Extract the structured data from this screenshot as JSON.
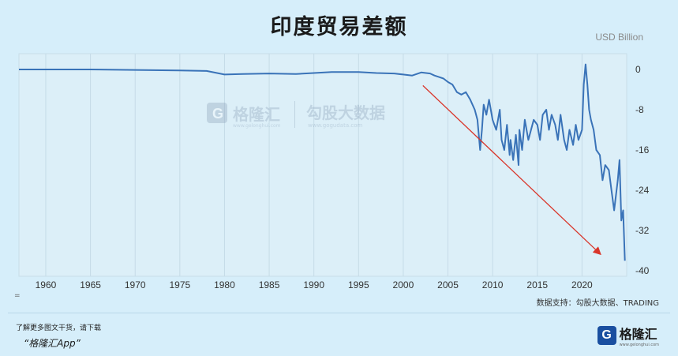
{
  "chart_data": {
    "type": "line",
    "title": "印度贸易差额",
    "ylabel": "USD Billion",
    "xlabel": "",
    "xlim": [
      1957,
      2025
    ],
    "ylim": [
      -40,
      1
    ],
    "xticks": [
      "1960",
      "1965",
      "1970",
      "1975",
      "1980",
      "1985",
      "1990",
      "1995",
      "2000",
      "2005",
      "2010",
      "2015",
      "2020"
    ],
    "yticks": [
      "0",
      "-8",
      "-16",
      "-24",
      "-32",
      "-40"
    ],
    "ytick_values": [
      0,
      -8,
      -16,
      -24,
      -32,
      -40
    ],
    "grid": "vertical",
    "series": [
      {
        "color": "#3a73b8",
        "x": [
          1957,
          1960,
          1965,
          1970,
          1975,
          1978,
          1980,
          1982,
          1985,
          1988,
          1990,
          1992,
          1995,
          1997,
          1999,
          2000,
          2001,
          2002,
          2003,
          2003.5,
          2004,
          2004.5,
          2005,
          2005.5,
          2006,
          2006.5,
          2007,
          2007.5,
          2008,
          2008.3,
          2008.6,
          2008.8,
          2009,
          2009.3,
          2009.6,
          2010,
          2010.4,
          2010.8,
          2011,
          2011.3,
          2011.6,
          2011.9,
          2012,
          2012.3,
          2012.6,
          2012.9,
          2013,
          2013.3,
          2013.6,
          2014,
          2014.3,
          2014.6,
          2015,
          2015.3,
          2015.6,
          2016,
          2016.3,
          2016.6,
          2017,
          2017.3,
          2017.6,
          2018,
          2018.3,
          2018.6,
          2019,
          2019.3,
          2019.6,
          2020,
          2020.2,
          2020.4,
          2020.6,
          2020.8,
          2021,
          2021.3,
          2021.6,
          2022,
          2022.3,
          2022.6,
          2023,
          2023.3,
          2023.6,
          2024,
          2024.2,
          2024.4,
          2024.6,
          2024.8
        ],
        "values": [
          0,
          0,
          0,
          -0.1,
          -0.2,
          -0.3,
          -1,
          -0.9,
          -0.8,
          -0.9,
          -0.7,
          -0.5,
          -0.5,
          -0.7,
          -0.8,
          -1,
          -1.2,
          -0.6,
          -0.8,
          -1.2,
          -1.5,
          -1.8,
          -2.5,
          -3,
          -4.5,
          -5,
          -4.5,
          -6,
          -8,
          -10,
          -16,
          -12,
          -7,
          -9,
          -6,
          -10,
          -12,
          -8,
          -14,
          -16,
          -11,
          -17,
          -14,
          -18,
          -13,
          -19,
          -12,
          -16,
          -10,
          -14,
          -12,
          -10,
          -11,
          -14,
          -9,
          -8,
          -12,
          -9,
          -11,
          -14,
          -9,
          -14,
          -16,
          -12,
          -15,
          -11,
          -14,
          -12,
          -3,
          1,
          -3,
          -8,
          -10,
          -12,
          -16,
          -17,
          -22,
          -19,
          -20,
          -24,
          -28,
          -22,
          -18,
          -30,
          -28,
          -38
        ]
      },
      {
        "color": "#d9362b",
        "x": [
          2002.2,
          2022
        ],
        "values": [
          -3.2,
          -36.6
        ]
      }
    ]
  },
  "header": {
    "title": "印度贸易差额",
    "unit": "USD Billion"
  },
  "watermark": {
    "brand": "格隆汇",
    "brand_sub": "www.gelonghui.com",
    "partner": "勾股大数据",
    "partner_sub": "www.gogudata.com"
  },
  "source": "数据支持：勾股大数据、TRADING",
  "footer": {
    "small_text": "了解更多图文干货，请下载",
    "app_text": "“格隆汇App”",
    "logo_mark": "G",
    "logo_text": "格隆汇",
    "logo_sub": "www.gelonghui.com",
    "corner_mark": "="
  }
}
